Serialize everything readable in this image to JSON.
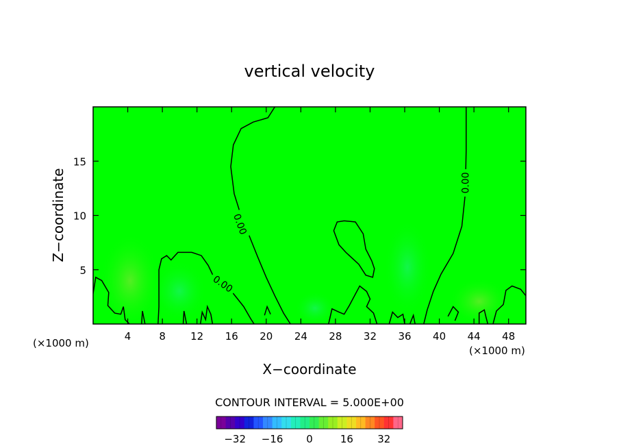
{
  "chart_data": {
    "type": "heatmap",
    "title": "vertical velocity",
    "xlabel": "X−coordinate",
    "ylabel": "Z−coordinate",
    "x_unit_left": "(×1000 m)",
    "x_unit_right": "(×1000 m)",
    "xlim": [
      0,
      50
    ],
    "ylim": [
      0,
      20
    ],
    "x_ticks": [
      4,
      8,
      12,
      16,
      20,
      24,
      28,
      32,
      36,
      40,
      44,
      48
    ],
    "y_ticks": [
      5,
      10,
      15
    ],
    "field_value_dominant": 0,
    "background_color": "#00ff00",
    "contour_lines": [
      {
        "label": "0.00",
        "level": 0.0,
        "label_position": [
          17.0,
          9.2
        ],
        "label_angle": 70
      },
      {
        "label": "0.00",
        "level": 0.0,
        "label_position": [
          15.0,
          3.7
        ],
        "label_angle": 35
      },
      {
        "label": "0.00",
        "level": 0.0,
        "label_position": [
          43.0,
          13.0
        ],
        "label_angle": -90
      }
    ],
    "contour_paths": [
      {
        "points": [
          [
            21.0,
            20.0
          ],
          [
            20.2,
            19.0
          ],
          [
            18.5,
            18.6
          ],
          [
            17.1,
            18.0
          ],
          [
            16.2,
            16.5
          ],
          [
            15.9,
            14.5
          ],
          [
            16.3,
            12.0
          ],
          [
            17.0,
            10.2
          ],
          [
            18.0,
            8.2
          ],
          [
            19.0,
            6.2
          ],
          [
            20.0,
            4.3
          ],
          [
            21.0,
            2.6
          ],
          [
            22.0,
            1.0
          ],
          [
            22.8,
            0.0
          ]
        ]
      },
      {
        "points": [
          [
            43.1,
            20.0
          ],
          [
            43.1,
            16.0
          ],
          [
            43.0,
            12.0
          ],
          [
            42.6,
            9.0
          ],
          [
            41.6,
            6.5
          ],
          [
            40.2,
            4.6
          ],
          [
            39.3,
            3.0
          ],
          [
            38.6,
            1.3
          ],
          [
            38.2,
            0.0
          ]
        ]
      },
      {
        "points": [
          [
            7.5,
            0.0
          ],
          [
            7.6,
            1.6
          ],
          [
            7.6,
            3.5
          ],
          [
            7.6,
            5.0
          ],
          [
            7.9,
            6.0
          ],
          [
            8.5,
            6.3
          ],
          [
            9.0,
            5.9
          ],
          [
            9.8,
            6.6
          ],
          [
            11.4,
            6.6
          ],
          [
            12.5,
            6.3
          ],
          [
            13.3,
            5.4
          ],
          [
            13.9,
            4.4
          ],
          [
            15.0,
            3.9
          ],
          [
            16.0,
            3.0
          ],
          [
            16.7,
            2.3
          ],
          [
            17.4,
            1.6
          ],
          [
            18.2,
            0.5
          ],
          [
            18.6,
            0.0
          ]
        ]
      },
      {
        "points": [
          [
            0.0,
            2.8
          ],
          [
            0.3,
            4.3
          ],
          [
            1.0,
            4.0
          ],
          [
            1.8,
            2.9
          ],
          [
            1.7,
            1.7
          ],
          [
            2.5,
            1.0
          ],
          [
            3.2,
            0.9
          ],
          [
            3.5,
            1.6
          ],
          [
            3.7,
            0.4
          ],
          [
            4.2,
            0.0
          ]
        ]
      },
      {
        "points": [
          [
            27.2,
            0.0
          ],
          [
            27.6,
            1.4
          ],
          [
            28.4,
            1.1
          ],
          [
            29.0,
            0.9
          ],
          [
            29.6,
            1.7
          ],
          [
            30.2,
            2.6
          ],
          [
            30.8,
            3.5
          ],
          [
            31.6,
            3.0
          ],
          [
            32.0,
            2.3
          ],
          [
            31.6,
            1.6
          ],
          [
            32.4,
            1.0
          ],
          [
            32.8,
            0.0
          ]
        ]
      },
      {
        "points": [
          [
            29.0,
            9.5
          ],
          [
            30.3,
            9.4
          ],
          [
            31.2,
            8.3
          ],
          [
            31.5,
            6.9
          ],
          [
            32.2,
            5.8
          ],
          [
            32.5,
            5.1
          ],
          [
            32.3,
            4.3
          ],
          [
            31.5,
            4.5
          ],
          [
            30.7,
            5.5
          ],
          [
            29.2,
            6.6
          ],
          [
            28.4,
            7.3
          ],
          [
            27.8,
            8.6
          ],
          [
            28.2,
            9.4
          ],
          [
            29.0,
            9.5
          ]
        ]
      },
      {
        "points": [
          [
            50.0,
            2.6
          ],
          [
            49.4,
            3.2
          ],
          [
            48.4,
            3.5
          ],
          [
            47.7,
            3.1
          ],
          [
            47.4,
            1.8
          ],
          [
            46.6,
            1.2
          ],
          [
            46.2,
            0.0
          ]
        ]
      },
      {
        "points": [
          [
            44.6,
            0.0
          ],
          [
            44.6,
            1.0
          ],
          [
            45.2,
            1.3
          ],
          [
            45.4,
            0.6
          ],
          [
            45.6,
            0.0
          ]
        ]
      },
      {
        "points": [
          [
            41.0,
            0.7
          ],
          [
            41.6,
            1.6
          ],
          [
            42.2,
            1.1
          ],
          [
            41.8,
            0.3
          ]
        ]
      },
      {
        "points": [
          [
            12.4,
            0.0
          ],
          [
            12.6,
            1.1
          ],
          [
            13.0,
            0.4
          ],
          [
            13.2,
            1.6
          ],
          [
            13.6,
            0.9
          ],
          [
            13.8,
            0.0
          ]
        ]
      },
      {
        "points": [
          [
            10.4,
            0.0
          ],
          [
            10.5,
            1.2
          ],
          [
            10.8,
            0.0
          ]
        ]
      },
      {
        "points": [
          [
            5.6,
            0.0
          ],
          [
            5.7,
            1.2
          ],
          [
            6.0,
            0.0
          ]
        ]
      },
      {
        "points": [
          [
            19.8,
            0.8
          ],
          [
            20.1,
            1.6
          ],
          [
            20.5,
            0.9
          ]
        ]
      },
      {
        "points": [
          [
            34.2,
            0.0
          ],
          [
            34.6,
            1.1
          ],
          [
            35.2,
            0.6
          ],
          [
            35.8,
            0.9
          ],
          [
            36.0,
            0.0
          ]
        ]
      },
      {
        "points": [
          [
            36.6,
            0.0
          ],
          [
            37.0,
            0.8
          ],
          [
            37.2,
            0.0
          ]
        ]
      }
    ],
    "colorbar": {
      "label": "CONTOUR INTERVAL = 5.000E+00",
      "tick_labels": [
        "−32",
        "−16",
        "0",
        "16",
        "32"
      ],
      "tick_values": [
        -32,
        -16,
        0,
        16,
        32
      ],
      "range": [
        -40,
        40
      ],
      "colors": [
        "#7a0099",
        "#5500aa",
        "#3300cc",
        "#1122dd",
        "#2255ff",
        "#3388ff",
        "#33bbff",
        "#33ddee",
        "#22eebb",
        "#22ee88",
        "#33ee55",
        "#66ee33",
        "#99ee22",
        "#ccee22",
        "#eedd22",
        "#ffbb22",
        "#ff8822",
        "#ff5522",
        "#ff3333",
        "#ff6688"
      ]
    }
  }
}
